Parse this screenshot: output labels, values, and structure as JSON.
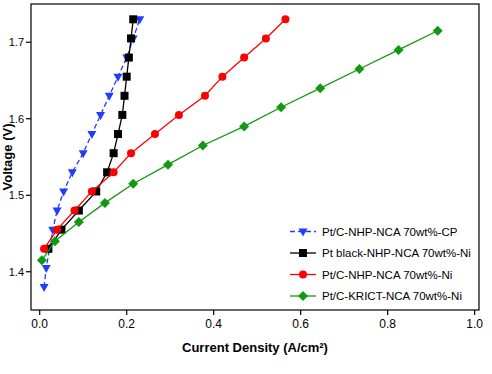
{
  "chart_data": {
    "type": "line",
    "x_label": "Current Density (A/cm²)",
    "y_label": "Voltage (V)",
    "xlim": [
      -0.02,
      1.01
    ],
    "ylim": [
      1.35,
      1.75
    ],
    "xticks": [
      {
        "value": 0,
        "label": "0.0"
      },
      {
        "value": 0.2,
        "label": "0.2"
      },
      {
        "value": 0.4,
        "label": "0.4"
      },
      {
        "value": 0.6,
        "label": "0.6"
      },
      {
        "value": 0.8,
        "label": "0.8"
      },
      {
        "value": 1,
        "label": "1.0"
      }
    ],
    "yticks": [
      1.4,
      1.5,
      1.6,
      1.7
    ],
    "grid": false,
    "legend": "lower right",
    "series": [
      {
        "name": "Pt/C-NHP-NCA 70wt%-CP",
        "color": "#1f3dff",
        "marker": "triangle-down",
        "line_style": "dashed",
        "x": [
          0.01,
          0.015,
          0.03,
          0.04,
          0.055,
          0.075,
          0.1,
          0.12,
          0.14,
          0.16,
          0.18,
          0.2,
          0.215,
          0.23
        ],
        "values": [
          1.38,
          1.405,
          1.455,
          1.48,
          1.505,
          1.53,
          1.555,
          1.58,
          1.605,
          1.63,
          1.655,
          1.68,
          1.705,
          1.73
        ]
      },
      {
        "name": "Pt black-NHP-NCA 70wt%-Ni",
        "color": "#000000",
        "marker": "square",
        "line_style": "solid",
        "x": [
          0.02,
          0.05,
          0.09,
          0.13,
          0.155,
          0.17,
          0.18,
          0.19,
          0.195,
          0.2,
          0.205,
          0.21,
          0.215
        ],
        "values": [
          1.43,
          1.455,
          1.48,
          1.505,
          1.53,
          1.555,
          1.58,
          1.605,
          1.63,
          1.655,
          1.68,
          1.705,
          1.73
        ]
      },
      {
        "name": "Pt/C-NHP-NCA 70wt%-Ni",
        "color": "#ff0000",
        "marker": "circle",
        "line_style": "solid",
        "x": [
          0.01,
          0.04,
          0.08,
          0.12,
          0.17,
          0.21,
          0.265,
          0.32,
          0.38,
          0.42,
          0.47,
          0.52,
          0.565
        ],
        "values": [
          1.43,
          1.455,
          1.48,
          1.505,
          1.53,
          1.555,
          1.58,
          1.605,
          1.63,
          1.655,
          1.68,
          1.705,
          1.73
        ]
      },
      {
        "name": "Pt/C-KRICT-NCA 70wt%-Ni",
        "color": "#119911",
        "marker": "diamond",
        "line_style": "solid",
        "x": [
          0.005,
          0.035,
          0.09,
          0.15,
          0.215,
          0.295,
          0.375,
          0.47,
          0.555,
          0.645,
          0.735,
          0.825,
          0.915
        ],
        "values": [
          1.415,
          1.44,
          1.465,
          1.49,
          1.515,
          1.54,
          1.565,
          1.59,
          1.615,
          1.64,
          1.665,
          1.69,
          1.715
        ]
      }
    ]
  }
}
